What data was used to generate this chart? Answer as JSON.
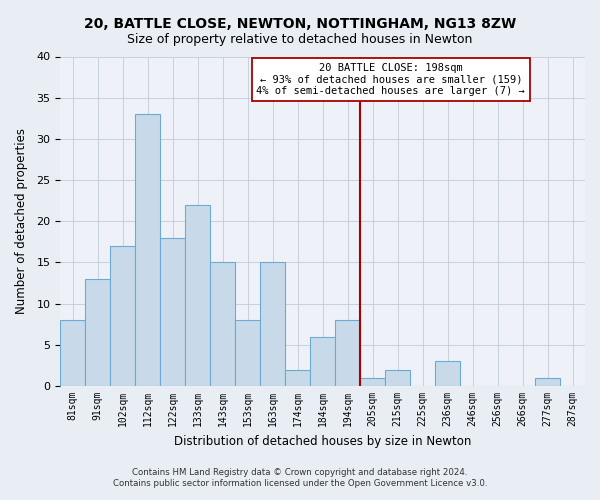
{
  "title": "20, BATTLE CLOSE, NEWTON, NOTTINGHAM, NG13 8ZW",
  "subtitle": "Size of property relative to detached houses in Newton",
  "xlabel": "Distribution of detached houses by size in Newton",
  "ylabel": "Number of detached properties",
  "bar_labels": [
    "81sqm",
    "91sqm",
    "102sqm",
    "112sqm",
    "122sqm",
    "133sqm",
    "143sqm",
    "153sqm",
    "163sqm",
    "174sqm",
    "184sqm",
    "194sqm",
    "205sqm",
    "215sqm",
    "225sqm",
    "236sqm",
    "246sqm",
    "256sqm",
    "266sqm",
    "277sqm",
    "287sqm"
  ],
  "bar_heights": [
    8,
    13,
    17,
    33,
    18,
    22,
    15,
    8,
    15,
    2,
    6,
    8,
    1,
    2,
    0,
    3,
    0,
    0,
    0,
    1,
    0
  ],
  "bar_color": "#c8daea",
  "bar_edge_color": "#6aaad4",
  "vline_color": "#aa0000",
  "vline_index": 11.5,
  "ylim": [
    0,
    40
  ],
  "yticks": [
    0,
    5,
    10,
    15,
    20,
    25,
    30,
    35,
    40
  ],
  "annotation_title": "20 BATTLE CLOSE: 198sqm",
  "annotation_line1": "← 93% of detached houses are smaller (159)",
  "annotation_line2": "4% of semi-detached houses are larger (7) →",
  "footnote1": "Contains HM Land Registry data © Crown copyright and database right 2024.",
  "footnote2": "Contains public sector information licensed under the Open Government Licence v3.0.",
  "bg_color": "#e8eef4",
  "plot_bg_color": "#eef2f8",
  "grid_color": "#c0ccd8"
}
